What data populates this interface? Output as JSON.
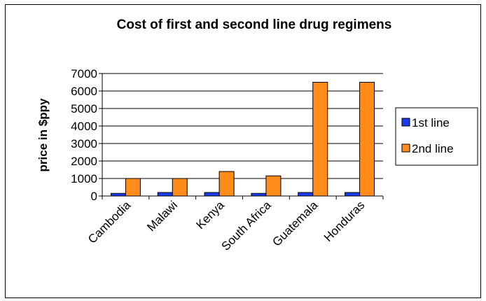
{
  "chart_data": {
    "type": "bar",
    "title": "Cost of first and second line drug regimens",
    "xlabel": "",
    "ylabel": "price in $ppy",
    "categories": [
      "Cambodia",
      "Malawi",
      "Kenya",
      "South Africa",
      "Guatemala",
      "Honduras"
    ],
    "series": [
      {
        "name": "1st line",
        "color": "#1a3cf0",
        "values": [
          150,
          200,
          200,
          150,
          200,
          200
        ]
      },
      {
        "name": "2nd line",
        "color": "#ff8c1a",
        "values": [
          1000,
          1000,
          1400,
          1150,
          6500,
          6500
        ]
      }
    ],
    "ylim": [
      0,
      7000
    ],
    "yticks": [
      0,
      1000,
      2000,
      3000,
      4000,
      5000,
      6000,
      7000
    ],
    "grid": true,
    "legend": "right"
  }
}
